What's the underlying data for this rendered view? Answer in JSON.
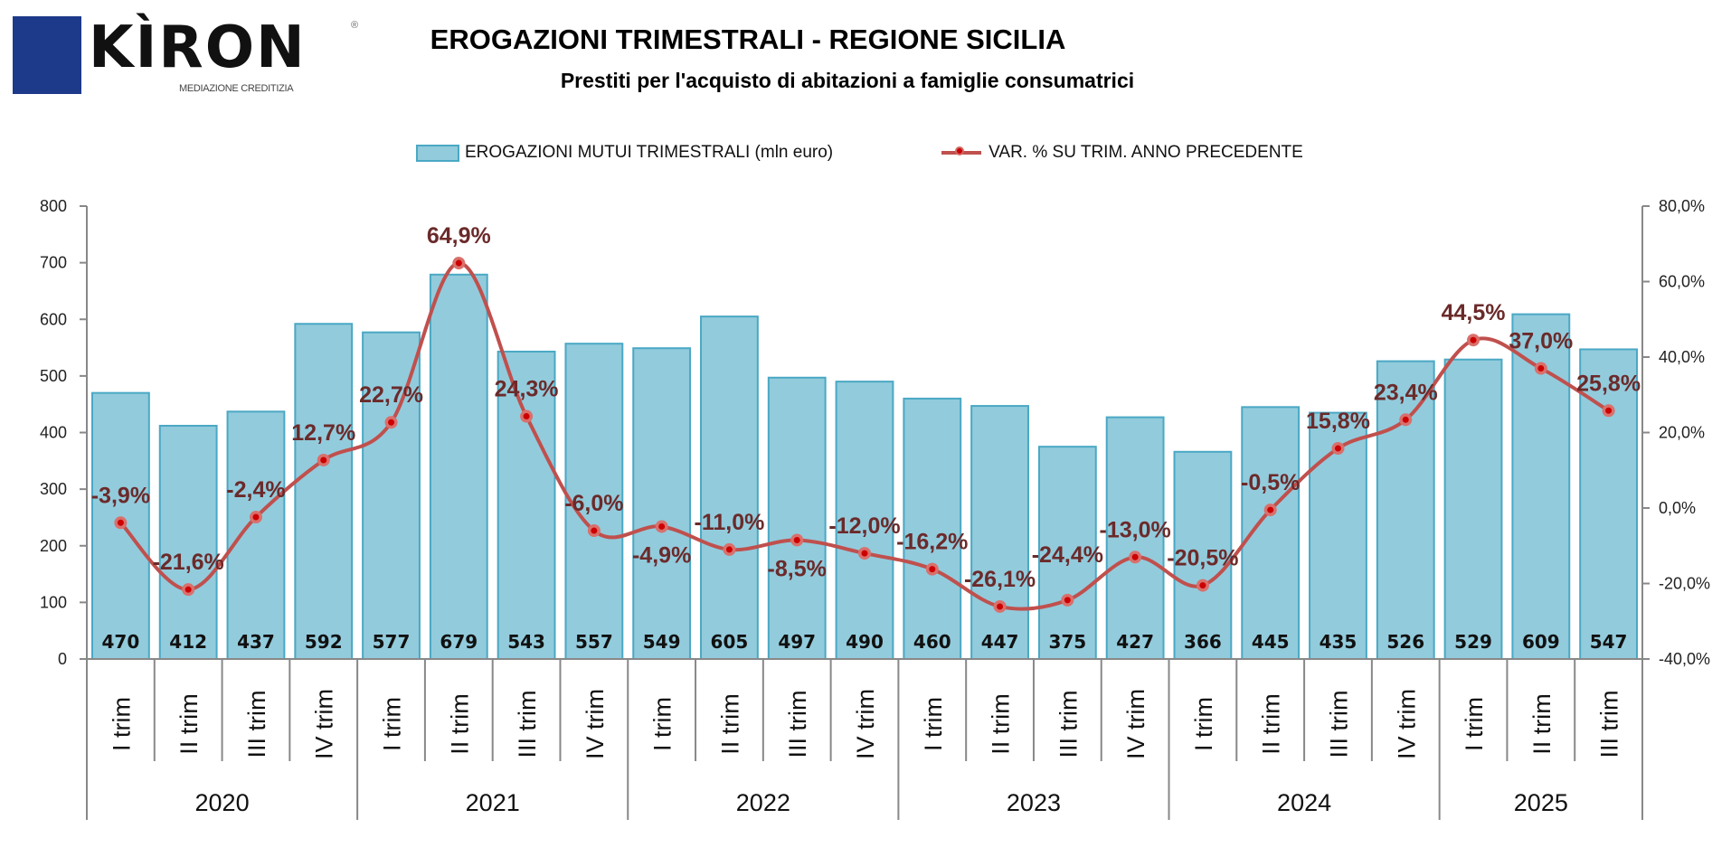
{
  "logo": {
    "name": "KÌRON",
    "tagline": "MEDIAZIONE CREDITIZIA",
    "reg": "®"
  },
  "colors": {
    "bar_fill": "#92cbdc",
    "bar_stroke": "#4aa8c4",
    "line": "#c0504d",
    "marker": "#cc0000",
    "pct_label": "#6b2a2a"
  },
  "chart_data": {
    "type": "bar",
    "title": "EROGAZIONI TRIMESTRALI - REGIONE SICILIA",
    "subtitle": "Prestiti per l'acquisto di abitazioni a famiglie consumatrici",
    "legend_position": "top",
    "years": [
      "2020",
      "2021",
      "2022",
      "2023",
      "2024",
      "2025"
    ],
    "year_quarter_counts": [
      4,
      4,
      4,
      4,
      4,
      3
    ],
    "categories": [
      "I trim",
      "II trim",
      "III trim",
      "IV trim",
      "I trim",
      "II trim",
      "III trim",
      "IV trim",
      "I trim",
      "II trim",
      "III trim",
      "IV trim",
      "I trim",
      "II trim",
      "III trim",
      "IV trim",
      "I trim",
      "II trim",
      "III trim",
      "IV trim",
      "I trim",
      "II trim",
      "III trim"
    ],
    "series": [
      {
        "name": "EROGAZIONI MUTUI TRIMESTRALI (mln euro)",
        "type": "bar",
        "axis": "left",
        "values": [
          470,
          412,
          437,
          592,
          577,
          679,
          543,
          557,
          549,
          605,
          497,
          490,
          460,
          447,
          375,
          427,
          366,
          445,
          435,
          526,
          529,
          609,
          547
        ],
        "labels": [
          "470",
          "412",
          "437",
          "592",
          "577",
          "679",
          "543",
          "557",
          "549",
          "605",
          "497",
          "490",
          "460",
          "447",
          "375",
          "427",
          "366",
          "445",
          "435",
          "526",
          "529",
          "609",
          "547"
        ]
      },
      {
        "name": "VAR. % SU TRIM. ANNO PRECEDENTE",
        "type": "line",
        "axis": "right",
        "values": [
          -3.9,
          -21.6,
          -2.4,
          12.7,
          22.7,
          64.9,
          24.3,
          -6.0,
          -4.9,
          -11.0,
          -8.5,
          -12.0,
          -16.2,
          -26.1,
          -24.4,
          -13.0,
          -20.5,
          -0.5,
          15.8,
          23.4,
          44.5,
          37.0,
          25.8
        ],
        "labels": [
          "-3,9%",
          "-21,6%",
          "-2,4%",
          "12,7%",
          "22,7%",
          "64,9%",
          "24,3%",
          "-6,0%",
          "-4,9%",
          "-11,0%",
          "-8,5%",
          "-12,0%",
          "-16,2%",
          "-26,1%",
          "-24,4%",
          "-13,0%",
          "-20,5%",
          "-0,5%",
          "15,8%",
          "23,4%",
          "44,5%",
          "37,0%",
          "25,8%"
        ]
      }
    ],
    "y_left": {
      "min": 0,
      "max": 800,
      "step": 100,
      "ticks": [
        "0",
        "100",
        "200",
        "300",
        "400",
        "500",
        "600",
        "700",
        "800"
      ]
    },
    "y_right": {
      "min": -40,
      "max": 80,
      "step": 20,
      "ticks": [
        "-40,0%",
        "-20,0%",
        "0,0%",
        "20,0%",
        "40,0%",
        "60,0%",
        "80,0%"
      ]
    },
    "grid": false
  }
}
